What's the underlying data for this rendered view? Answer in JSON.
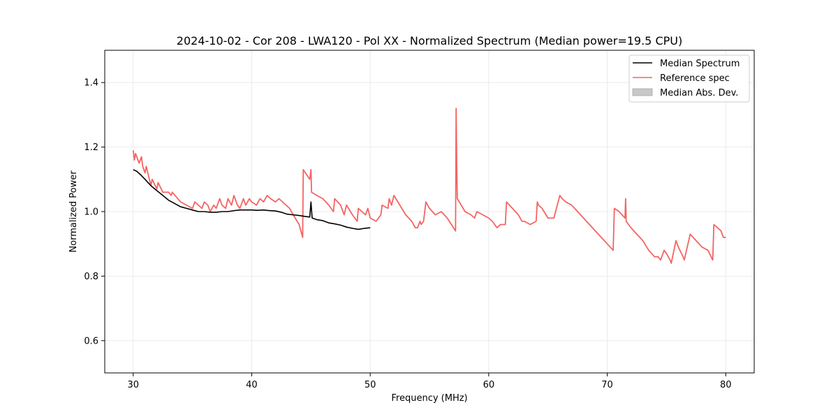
{
  "chart_data": {
    "type": "line",
    "title": "2024-10-02 - Cor 208 - LWA120 - Pol XX - Normalized Spectrum (Median power=19.5 CPU)",
    "xlabel": "Frequency (MHz)",
    "ylabel": "Normalized Power",
    "xlim": [
      27.6,
      82.4
    ],
    "ylim": [
      0.5,
      1.5
    ],
    "xticks": [
      30,
      40,
      50,
      60,
      70,
      80
    ],
    "yticks": [
      0.6,
      0.8,
      1.0,
      1.2,
      1.4
    ],
    "xtick_labels": [
      "30",
      "40",
      "50",
      "60",
      "70",
      "80"
    ],
    "ytick_labels": [
      "0.6",
      "0.8",
      "1.0",
      "1.2",
      "1.4"
    ],
    "grid": true,
    "legend_position": "top-right",
    "legend": [
      "Median Spectrum",
      "Reference spec",
      "Median Abs. Dev."
    ],
    "colors": {
      "median": "#000000",
      "reference": "#f46464",
      "mad": "#c8c8c8"
    },
    "series": [
      {
        "name": "Median Spectrum",
        "x": [
          30.0,
          30.3,
          30.6,
          31.0,
          31.5,
          32.0,
          32.5,
          33.0,
          33.5,
          34.0,
          34.5,
          35.0,
          35.5,
          36.0,
          36.5,
          37.0,
          37.5,
          38.0,
          38.5,
          39.0,
          39.5,
          40.0,
          40.5,
          41.0,
          41.5,
          42.0,
          42.5,
          43.0,
          43.5,
          44.0,
          44.5,
          44.9,
          45.0,
          45.1,
          45.5,
          46.0,
          46.5,
          47.0,
          47.5,
          48.0,
          48.5,
          49.0,
          49.5,
          50.0
        ],
        "values": [
          1.13,
          1.125,
          1.115,
          1.1,
          1.08,
          1.065,
          1.05,
          1.035,
          1.025,
          1.015,
          1.01,
          1.005,
          1.0,
          1.0,
          0.998,
          0.998,
          1.0,
          1.0,
          1.003,
          1.005,
          1.005,
          1.005,
          1.004,
          1.005,
          1.003,
          1.002,
          0.998,
          0.992,
          0.99,
          0.988,
          0.985,
          0.983,
          1.03,
          0.98,
          0.975,
          0.972,
          0.965,
          0.962,
          0.958,
          0.952,
          0.948,
          0.945,
          0.948,
          0.95
        ]
      },
      {
        "name": "Reference spec",
        "x": [
          30.0,
          30.1,
          30.2,
          30.5,
          30.7,
          30.8,
          31.0,
          31.1,
          31.5,
          31.6,
          32.0,
          32.1,
          32.5,
          33.0,
          33.2,
          33.3,
          34.0,
          34.5,
          35.0,
          35.2,
          35.5,
          35.8,
          36.0,
          36.3,
          36.5,
          36.8,
          37.0,
          37.3,
          37.5,
          37.8,
          38.0,
          38.3,
          38.5,
          38.8,
          39.0,
          39.3,
          39.5,
          39.8,
          40.0,
          40.4,
          40.7,
          41.0,
          41.3,
          41.6,
          42.0,
          42.3,
          42.6,
          42.9,
          43.2,
          43.5,
          44.0,
          44.3,
          44.35,
          44.9,
          45.0,
          45.05,
          45.5,
          46.0,
          46.5,
          46.9,
          47.0,
          47.5,
          47.8,
          48.0,
          48.5,
          48.9,
          49.0,
          49.3,
          49.6,
          49.8,
          50.0,
          50.5,
          50.9,
          51.0,
          51.5,
          51.6,
          51.8,
          52.0,
          52.5,
          53.0,
          53.5,
          53.8,
          54.0,
          54.2,
          54.3,
          54.5,
          54.7,
          55.0,
          55.5,
          56.0,
          56.5,
          57.2,
          57.25,
          57.3,
          57.35,
          58.0,
          58.5,
          58.8,
          59.0,
          59.5,
          60.0,
          60.3,
          60.5,
          60.7,
          61.0,
          61.4,
          61.5,
          62.0,
          62.5,
          62.8,
          63.0,
          63.5,
          64.0,
          64.1,
          64.2,
          64.5,
          65.0,
          65.5,
          66.0,
          66.2,
          66.5,
          67.0,
          67.5,
          68.0,
          68.5,
          69.0,
          69.5,
          70.0,
          70.5,
          70.6,
          71.0,
          71.5,
          71.55,
          71.6,
          72.0,
          72.5,
          73.0,
          73.5,
          74.0,
          74.3,
          74.5,
          74.8,
          75.0,
          75.3,
          75.4,
          75.8,
          76.0,
          76.4,
          76.5,
          77.0,
          77.5,
          78.0,
          78.5,
          78.9,
          79.0,
          79.3,
          79.6,
          79.8,
          80.0
        ],
        "values": [
          1.19,
          1.16,
          1.18,
          1.15,
          1.17,
          1.14,
          1.12,
          1.14,
          1.08,
          1.1,
          1.07,
          1.09,
          1.06,
          1.06,
          1.05,
          1.06,
          1.03,
          1.02,
          1.01,
          1.03,
          1.02,
          1.01,
          1.03,
          1.02,
          1.0,
          1.02,
          1.01,
          1.04,
          1.02,
          1.01,
          1.04,
          1.02,
          1.05,
          1.02,
          1.01,
          1.04,
          1.02,
          1.04,
          1.03,
          1.02,
          1.04,
          1.03,
          1.05,
          1.04,
          1.03,
          1.04,
          1.03,
          1.02,
          1.01,
          0.99,
          0.96,
          0.92,
          1.13,
          1.1,
          1.13,
          1.06,
          1.05,
          1.04,
          1.02,
          1.0,
          1.04,
          1.02,
          0.99,
          1.02,
          0.99,
          0.97,
          1.01,
          1.0,
          0.99,
          1.01,
          0.98,
          0.97,
          0.99,
          1.02,
          1.01,
          1.04,
          1.02,
          1.05,
          1.02,
          0.99,
          0.97,
          0.95,
          0.95,
          0.97,
          0.96,
          0.97,
          1.03,
          1.01,
          0.99,
          1.0,
          0.98,
          0.94,
          1.32,
          1.14,
          1.04,
          1.0,
          0.99,
          0.98,
          1.0,
          0.99,
          0.98,
          0.97,
          0.96,
          0.95,
          0.96,
          0.96,
          1.03,
          1.01,
          0.99,
          0.97,
          0.97,
          0.96,
          0.97,
          1.03,
          1.02,
          1.01,
          0.98,
          0.98,
          1.05,
          1.04,
          1.03,
          1.02,
          1.0,
          0.98,
          0.96,
          0.94,
          0.92,
          0.9,
          0.88,
          1.01,
          1.0,
          0.98,
          1.04,
          0.97,
          0.95,
          0.93,
          0.91,
          0.88,
          0.86,
          0.86,
          0.85,
          0.88,
          0.87,
          0.85,
          0.84,
          0.91,
          0.89,
          0.86,
          0.85,
          0.93,
          0.91,
          0.89,
          0.88,
          0.85,
          0.96,
          0.95,
          0.94,
          0.92,
          0.92
        ]
      }
    ]
  }
}
